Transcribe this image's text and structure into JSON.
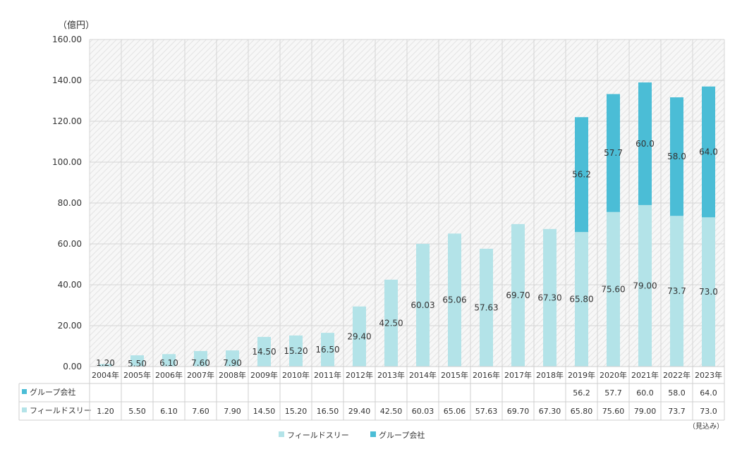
{
  "chart_data": {
    "type": "bar",
    "stacked": true,
    "unit_label": "（億円）",
    "footnote": "（見込み）",
    "categories": [
      "2004年",
      "2005年",
      "2006年",
      "2007年",
      "2008年",
      "2009年",
      "2010年",
      "2011年",
      "2012年",
      "2013年",
      "2014年",
      "2015年",
      "2016年",
      "2017年",
      "2018年",
      "2019年",
      "2020年",
      "2021年",
      "2022年",
      "2023年"
    ],
    "ylim": [
      0,
      160
    ],
    "yticks": [
      "0.00",
      "20.00",
      "40.00",
      "60.00",
      "80.00",
      "100.00",
      "120.00",
      "140.00",
      "160.00"
    ],
    "grid": true,
    "legend_position": "bottom",
    "series": [
      {
        "name": "フィールドスリー",
        "color": "#b3e3e8",
        "values": [
          1.2,
          5.5,
          6.1,
          7.6,
          7.9,
          14.5,
          15.2,
          16.5,
          29.4,
          42.5,
          60.03,
          65.06,
          57.63,
          69.7,
          67.3,
          65.8,
          75.6,
          79.0,
          73.7,
          73.0
        ],
        "labels": [
          "1.20",
          "5.50",
          "6.10",
          "7.60",
          "7.90",
          "14.50",
          "15.20",
          "16.50",
          "29.40",
          "42.50",
          "60.03",
          "65.06",
          "57.63",
          "69.70",
          "67.30",
          "65.80",
          "75.60",
          "79.00",
          "73.7",
          "73.0"
        ]
      },
      {
        "name": "グループ会社",
        "color": "#4bbdd6",
        "values": [
          null,
          null,
          null,
          null,
          null,
          null,
          null,
          null,
          null,
          null,
          null,
          null,
          null,
          null,
          null,
          56.2,
          57.7,
          60.0,
          58.0,
          64.0
        ],
        "labels": [
          "",
          "",
          "",
          "",
          "",
          "",
          "",
          "",
          "",
          "",
          "",
          "",
          "",
          "",
          "",
          "56.2",
          "57.7",
          "60.0",
          "58.0",
          "64.0"
        ]
      }
    ],
    "table_rows": [
      {
        "name": "グループ会社",
        "color": "#4bbdd6",
        "cells": [
          "",
          "",
          "",
          "",
          "",
          "",
          "",
          "",
          "",
          "",
          "",
          "",
          "",
          "",
          "",
          "56.2",
          "57.7",
          "60.0",
          "58.0",
          "64.0"
        ]
      },
      {
        "name": "フィールドスリー",
        "color": "#b3e3e8",
        "cells": [
          "1.20",
          "5.50",
          "6.10",
          "7.60",
          "7.90",
          "14.50",
          "15.20",
          "16.50",
          "29.40",
          "42.50",
          "60.03",
          "65.06",
          "57.63",
          "69.70",
          "67.30",
          "65.80",
          "75.60",
          "79.00",
          "73.7",
          "73.0"
        ]
      }
    ]
  }
}
